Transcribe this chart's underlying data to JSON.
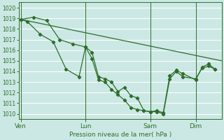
{
  "background_color": "#cce8e4",
  "grid_color": "#b8d8d5",
  "line_color": "#2d6e2d",
  "xlabel": "Pression niveau de la mer( hPa )",
  "ylim": [
    1009.5,
    1020.5
  ],
  "yticks": [
    1010,
    1011,
    1012,
    1013,
    1014,
    1015,
    1016,
    1017,
    1018,
    1019,
    1020
  ],
  "xtick_labels": [
    "Ven",
    "Lun",
    "Sam",
    "Dim"
  ],
  "xtick_positions": [
    0,
    10,
    20,
    27
  ],
  "day_vlines": [
    0,
    10,
    20,
    27
  ],
  "xlim": [
    -0.3,
    31
  ],
  "series_straight": {
    "x": [
      0,
      31
    ],
    "y": [
      1018.9,
      1015.0
    ]
  },
  "series1": {
    "x": [
      0,
      1,
      3,
      5,
      7,
      9,
      10,
      11,
      12,
      13,
      14,
      15,
      16,
      17,
      18,
      19,
      20,
      21,
      22,
      23,
      24,
      25,
      27,
      28,
      29,
      30
    ],
    "y": [
      1018.9,
      1018.7,
      1017.5,
      1016.8,
      1014.2,
      1013.5,
      1016.3,
      1015.8,
      1013.5,
      1013.3,
      1013.0,
      1012.1,
      1012.5,
      1011.7,
      1011.5,
      1010.3,
      1010.2,
      1010.2,
      1010.0,
      1013.3,
      1014.0,
      1013.5,
      1013.3,
      1014.3,
      1014.5,
      1014.2
    ]
  },
  "series2": {
    "x": [
      0,
      2,
      4,
      6,
      8,
      10,
      11,
      12,
      13,
      14,
      15,
      16,
      17,
      18,
      19,
      20,
      21,
      22,
      23,
      24,
      25,
      27,
      28,
      29,
      30
    ],
    "y": [
      1018.9,
      1019.1,
      1018.8,
      1017.0,
      1016.6,
      1016.3,
      1015.2,
      1013.2,
      1013.0,
      1012.3,
      1011.8,
      1011.3,
      1010.6,
      1010.4,
      1010.3,
      1010.2,
      1010.3,
      1010.1,
      1013.6,
      1014.1,
      1013.8,
      1013.2,
      1014.4,
      1014.7,
      1014.2
    ]
  }
}
